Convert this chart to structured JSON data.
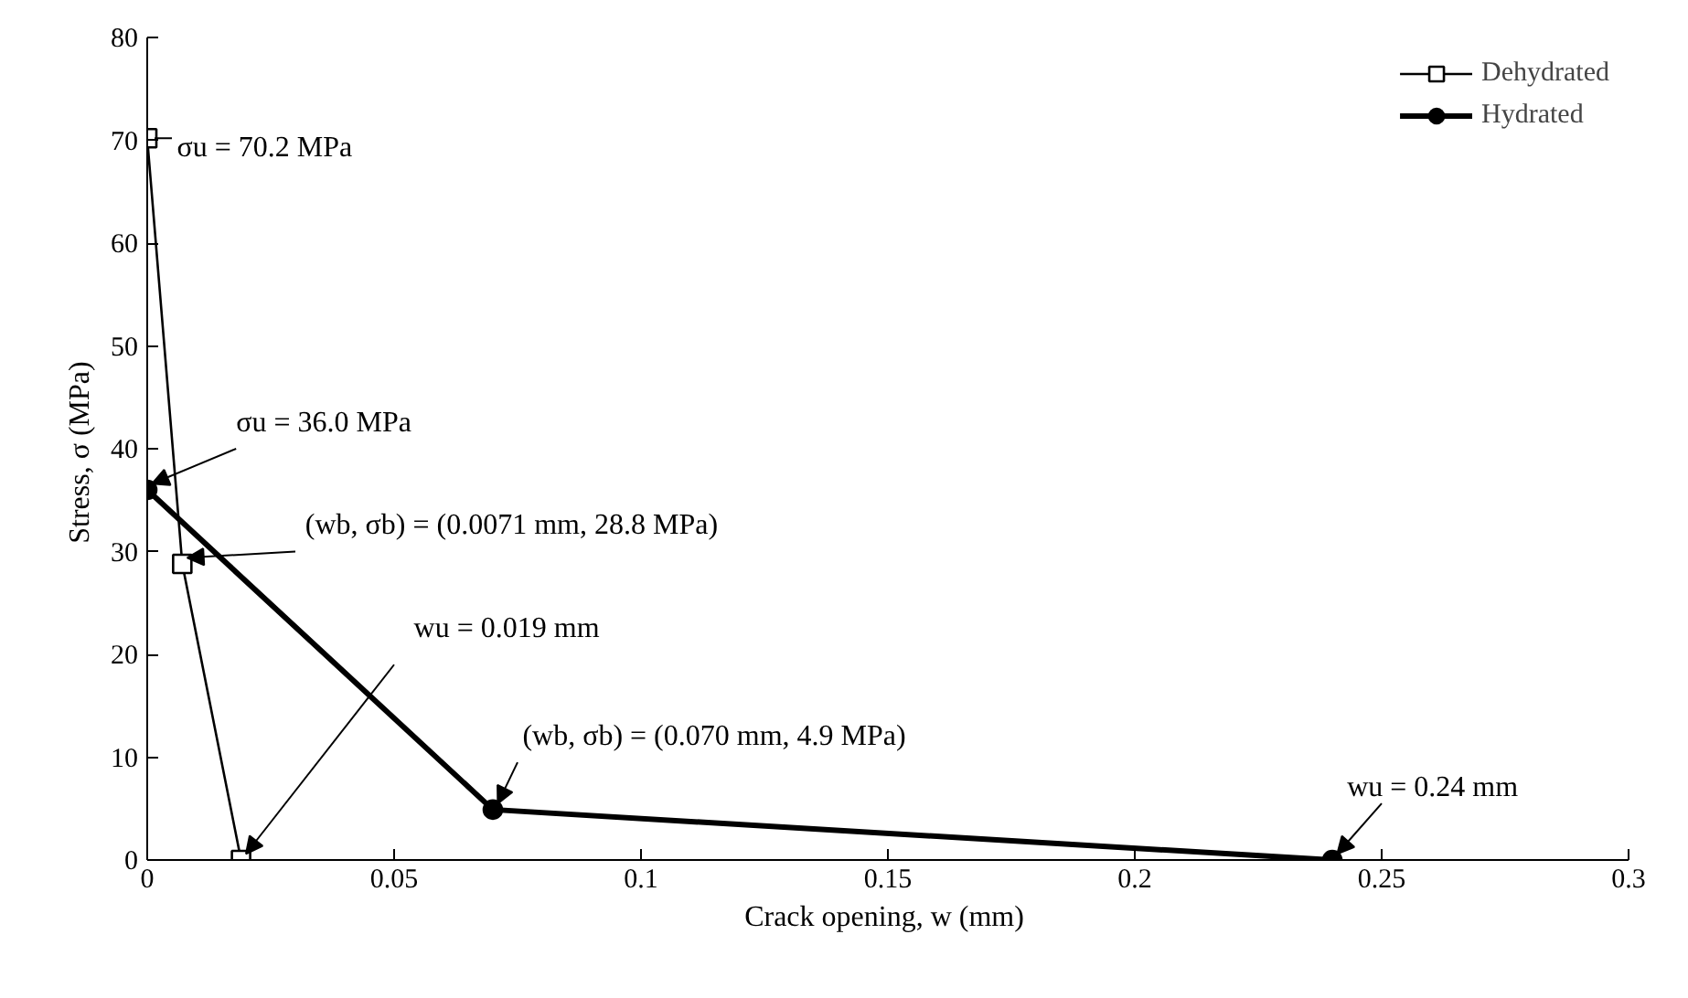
{
  "chart_data": {
    "type": "line",
    "xlabel": "Crack opening, w  (mm)",
    "ylabel": "Stress, σ  (MPa)",
    "xlim": [
      0,
      0.3
    ],
    "ylim": [
      0,
      80
    ],
    "xticks": [
      0,
      0.05,
      0.1,
      0.15,
      0.2,
      0.25,
      0.3
    ],
    "yticks": [
      0,
      10,
      20,
      30,
      40,
      50,
      60,
      70,
      80
    ],
    "grid": false,
    "legend": "top right",
    "line_style": "solid",
    "series": [
      {
        "name": "Dehydrated",
        "color": "#000000",
        "marker": "square",
        "x": [
          0,
          0.0071,
          0.019
        ],
        "values": [
          70.2,
          28.8,
          0
        ]
      },
      {
        "name": "Hydrated",
        "color": "#000000",
        "marker": "circle",
        "x": [
          0,
          0.07,
          0.24
        ],
        "values": [
          36.0,
          4.9,
          0
        ]
      }
    ],
    "annotations": [
      {
        "text": "σu = 70.2 MPa",
        "x": 0,
        "y": 70.2
      },
      {
        "text": "σu = 36.0 MPa",
        "x": 0,
        "y": 36.0
      },
      {
        "text": "(wb, σb) = (0.0071 mm, 28.8 MPa)",
        "x": 0.0071,
        "y": 28.8
      },
      {
        "text": "wu = 0.019 mm",
        "x": 0.019,
        "y": 0
      },
      {
        "text": "(wb, σb) = (0.070 mm, 4.9 MPa)",
        "x": 0.07,
        "y": 4.9
      },
      {
        "text": "wu = 0.24 mm",
        "x": 0.24,
        "y": 0
      }
    ]
  }
}
